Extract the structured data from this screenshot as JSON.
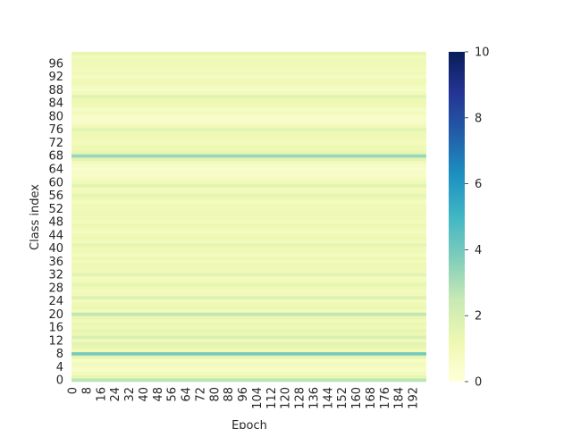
{
  "chart_data": {
    "type": "heatmap",
    "title": "",
    "xlabel": "Epoch",
    "ylabel": "Class index",
    "x_range": [
      0,
      199
    ],
    "y_range": [
      0,
      99
    ],
    "x_tick_labels": [
      "0",
      "8",
      "16",
      "24",
      "32",
      "40",
      "48",
      "56",
      "64",
      "72",
      "80",
      "88",
      "96",
      "104",
      "112",
      "120",
      "128",
      "136",
      "144",
      "152",
      "160",
      "168",
      "176",
      "184",
      "192"
    ],
    "y_tick_labels": [
      "0",
      "4",
      "8",
      "12",
      "16",
      "20",
      "24",
      "28",
      "32",
      "36",
      "40",
      "44",
      "48",
      "52",
      "56",
      "60",
      "64",
      "68",
      "72",
      "76",
      "80",
      "84",
      "88",
      "92",
      "96"
    ],
    "colorbar": {
      "colormap": "YlGnBu",
      "vmin": 0,
      "vmax": 10,
      "tick_labels": [
        "0",
        "2",
        "4",
        "6",
        "8",
        "10"
      ]
    },
    "note_values": "Each row (class index) has a constant value across all epochs",
    "row_values": [
      2.7,
      1.5,
      0.9,
      0.6,
      0.7,
      0.9,
      0.6,
      1.4,
      3.9,
      1.0,
      1.3,
      1.6,
      1.0,
      1.9,
      1.2,
      1.5,
      1.1,
      1.3,
      1.0,
      1.3,
      2.6,
      0.9,
      1.3,
      1.1,
      0.9,
      1.8,
      1.0,
      0.9,
      1.1,
      1.5,
      1.0,
      0.8,
      1.6,
      1.0,
      1.1,
      1.2,
      0.9,
      1.2,
      0.8,
      1.1,
      1.0,
      1.5,
      0.9,
      1.2,
      1.0,
      0.8,
      1.0,
      1.2,
      0.9,
      1.0,
      1.1,
      1.1,
      1.0,
      1.0,
      0.8,
      1.1,
      1.5,
      1.0,
      0.9,
      1.6,
      1.0,
      0.8,
      0.5,
      0.6,
      0.4,
      0.6,
      0.9,
      1.6,
      3.3,
      1.4,
      1.1,
      1.1,
      0.9,
      1.0,
      1.1,
      1.1,
      1.6,
      1.0,
      0.6,
      0.5,
      0.5,
      0.9,
      0.6,
      1.0,
      1.2,
      1.2,
      1.7,
      0.9,
      0.6,
      0.8,
      1.0,
      1.1,
      0.7,
      1.0,
      0.9,
      1.0,
      1.0,
      1.1,
      0.9,
      1.4
    ]
  }
}
